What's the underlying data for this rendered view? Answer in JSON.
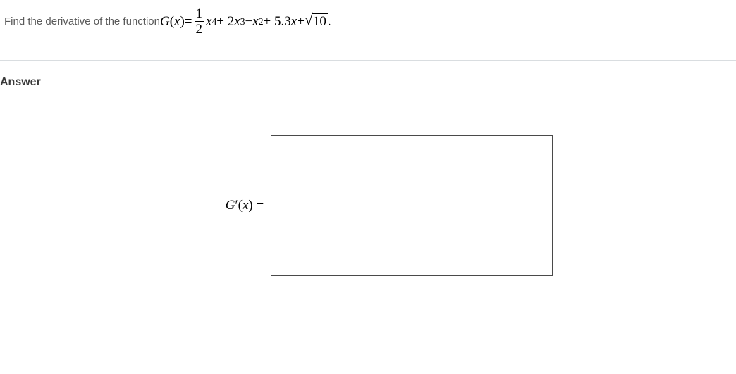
{
  "question": {
    "prompt_text": "Find the derivative of the function ",
    "func_name": "G",
    "func_arg": "x",
    "eq": " = ",
    "frac_num": "1",
    "frac_den": "2",
    "term1_var": "x",
    "term1_exp": "4",
    "plus1": " + 2",
    "term2_var": "x",
    "term2_exp": "3",
    "minus1": " − ",
    "term3_var": "x",
    "term3_exp": "2",
    "plus2": " + 5.3",
    "term4_var": "x",
    "plus3": " + ",
    "sqrt_radicand": "10",
    "period": "."
  },
  "answer": {
    "heading": "Answer",
    "label_func": "G",
    "label_prime": "′",
    "label_arg": "x",
    "label_eq": " ="
  },
  "styles": {
    "text_color": "#5a5a5a",
    "math_color": "#000000",
    "divider_color": "#d9dde0",
    "box_border": "#4a4a4a",
    "question_fontsize": 15,
    "math_fontsize": 19,
    "heading_fontsize": 16,
    "answer_box_width": 400,
    "answer_box_height": 200
  }
}
